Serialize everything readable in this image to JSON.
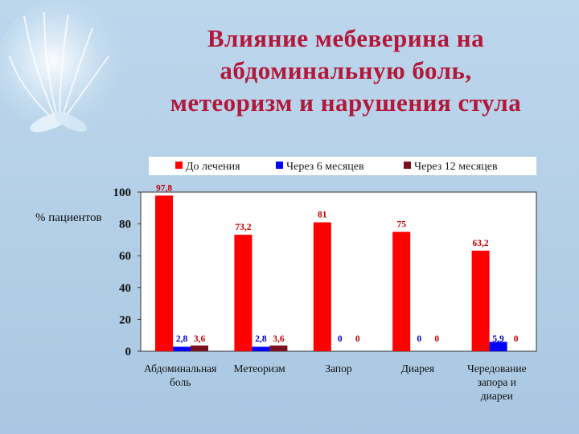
{
  "title_lines": [
    "Влияние мебеверина на",
    "абдоминальную боль,",
    "метеоризм и нарушения стула"
  ],
  "colors": {
    "title": "#b2183a",
    "series": [
      "#ff0000",
      "#0000ff",
      "#7a1020"
    ],
    "label_series": [
      "#c00000",
      "#0000cc",
      "#c00000"
    ]
  },
  "chart_data": {
    "type": "bar",
    "title": "Влияние мебеверина на абдоминальную боль, метеоризм и нарушения стула",
    "ylabel": "% пациентов",
    "xlabel": "",
    "ylim": [
      0,
      100
    ],
    "yticks": [
      0,
      20,
      40,
      60,
      80,
      100
    ],
    "grid": false,
    "legend_position": "top",
    "categories": [
      [
        "Абдоминальная",
        "боль"
      ],
      [
        "Метеоризм"
      ],
      [
        "Запор"
      ],
      [
        "Диарея"
      ],
      [
        "Чередование",
        "запора и",
        "диареи"
      ]
    ],
    "series": [
      {
        "name": "До лечения",
        "values": [
          97.8,
          73.2,
          81,
          75,
          63.2
        ],
        "labels": [
          "97,8",
          "73,2",
          "81",
          "75",
          "63,2"
        ]
      },
      {
        "name": "Через 6 месяцев",
        "values": [
          2.8,
          2.8,
          0,
          0,
          5.9
        ],
        "labels": [
          "2,8",
          "2,8",
          "0",
          "0",
          "5,9"
        ]
      },
      {
        "name": "Через 12 месяцев",
        "values": [
          3.6,
          3.6,
          0,
          0,
          0
        ],
        "labels": [
          "3,6",
          "3,6",
          "0",
          "0",
          "0"
        ]
      }
    ]
  }
}
